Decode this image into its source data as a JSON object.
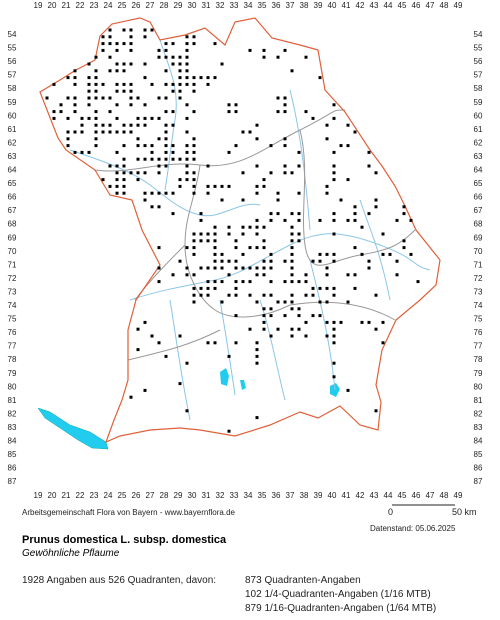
{
  "grid": {
    "columns": [
      19,
      20,
      21,
      22,
      23,
      24,
      25,
      26,
      27,
      28,
      29,
      30,
      31,
      32,
      33,
      34,
      35,
      36,
      37,
      38,
      39,
      40,
      41,
      42,
      43,
      44,
      45,
      46,
      47,
      48,
      49
    ],
    "rows": [
      54,
      55,
      56,
      57,
      58,
      59,
      60,
      61,
      62,
      63,
      64,
      65,
      66,
      67,
      68,
      69,
      70,
      71,
      72,
      73,
      74,
      75,
      76,
      77,
      78,
      79,
      80,
      81,
      82,
      83,
      84,
      85,
      86,
      87
    ]
  },
  "credit": "Arbeitsgemeinschaft Flora von Bayern - www.bayernflora.de",
  "scale": {
    "start": "0",
    "end": "50 km"
  },
  "date": "Datenstand: 05.06.2025",
  "species": {
    "name": "Prunus domestica L. subsp. domestica",
    "common_name": "Gewöhnliche Pflaume"
  },
  "summary": "1928 Angaben aus 526 Quadranten, davon:",
  "breakdown": [
    "873 Quadranten-Angaben",
    "102 1/4-Quadranten-Angaben (1/16 MTB)",
    "879 1/16-Quadranten-Angaben (1/64 MTB)"
  ]
}
